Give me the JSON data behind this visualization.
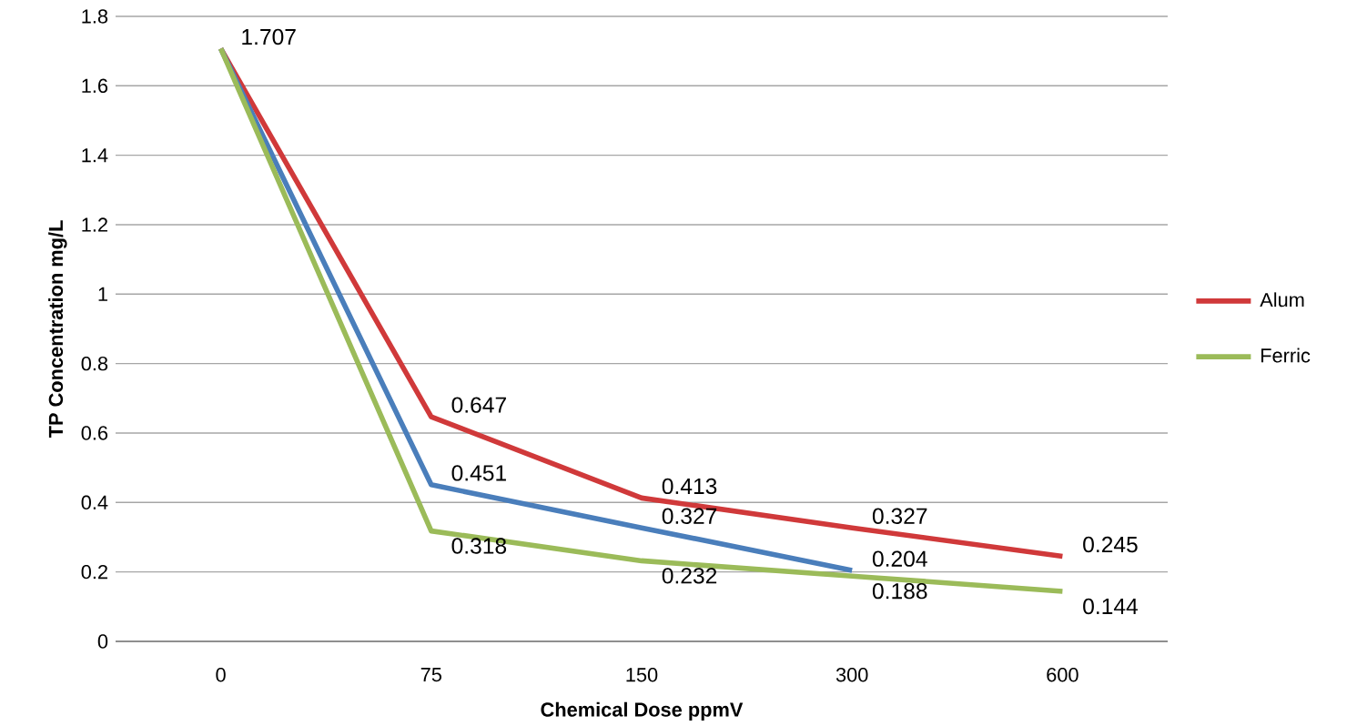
{
  "chart_data": {
    "type": "line",
    "xlabel": "Chemical Dose ppmV",
    "ylabel": "TP Concentration mg/L",
    "categories": [
      "0",
      "75",
      "150",
      "300",
      "600"
    ],
    "series": [
      {
        "name": "Alum",
        "color": "#d0393a",
        "values": [
          1.707,
          0.647,
          0.413,
          0.327,
          0.245
        ],
        "value_labels": [
          "1.707",
          "0.647",
          "0.413",
          "0.327",
          "0.245"
        ]
      },
      {
        "color": "#4a7ebb",
        "values": [
          1.707,
          0.451,
          0.327,
          0.204,
          null
        ],
        "value_labels": [
          null,
          "0.451",
          "0.327",
          "0.204",
          null
        ]
      },
      {
        "name": "Ferric",
        "color": "#9bbb59",
        "values": [
          1.707,
          0.318,
          0.232,
          0.188,
          0.144
        ],
        "value_labels": [
          null,
          "0.318",
          "0.232",
          "0.188",
          "0.144"
        ]
      }
    ],
    "ylim": [
      0,
      1.8
    ],
    "yticks": [
      0,
      0.2,
      0.4,
      0.6,
      0.8,
      1,
      1.2,
      1.4,
      1.6,
      1.8
    ],
    "grid": "y",
    "legend": "right",
    "marker": "none",
    "line_style": "solid"
  }
}
